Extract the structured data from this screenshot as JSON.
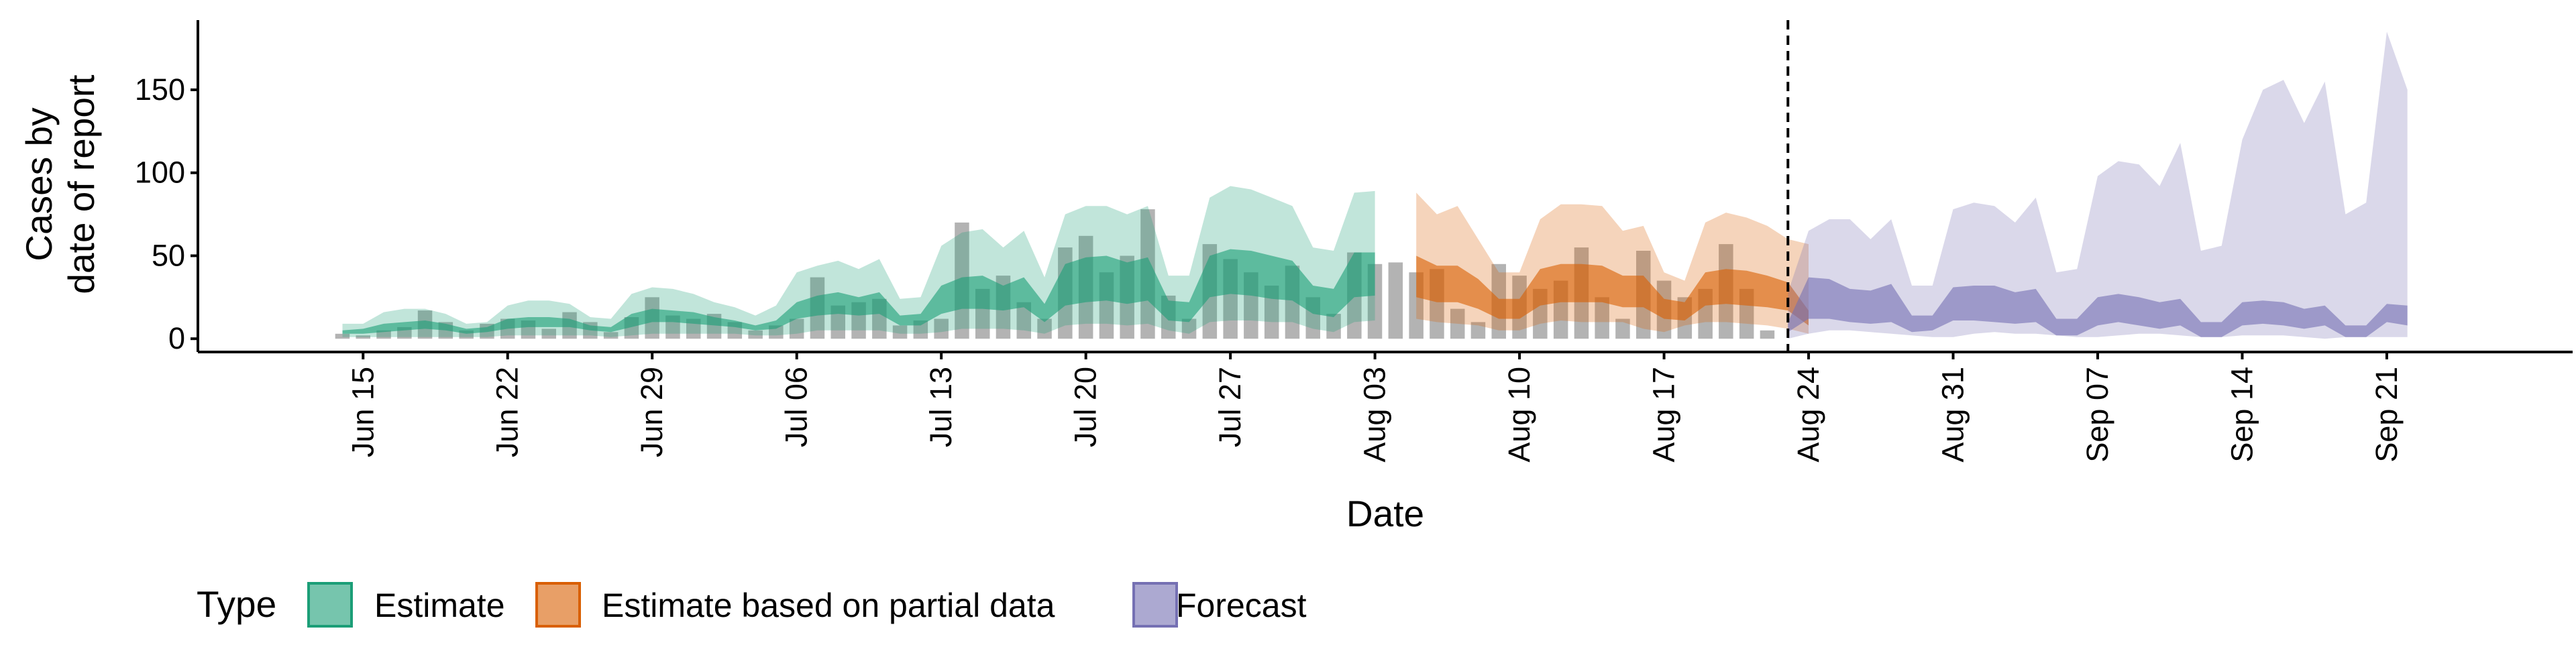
{
  "chart_data": {
    "type": "area",
    "title": "",
    "xlabel": "Date",
    "ylabel_lines": [
      "Cases by",
      "date of report"
    ],
    "y_ticks": [
      0,
      50,
      100,
      150
    ],
    "ylim": [
      -8,
      192
    ],
    "xlim": [
      "2020-06-07",
      "2020-09-30"
    ],
    "x_tick_labels": [
      "Jun 15",
      "Jun 22",
      "Jun 29",
      "Jul 06",
      "Jul 13",
      "Jul 20",
      "Jul 27",
      "Aug 03",
      "Aug 10",
      "Aug 17",
      "Aug 24",
      "Aug 31",
      "Sep 07",
      "Sep 14",
      "Sep 21"
    ],
    "x_tick_dates": [
      "2020-06-15",
      "2020-06-22",
      "2020-06-29",
      "2020-07-06",
      "2020-07-13",
      "2020-07-20",
      "2020-07-27",
      "2020-08-03",
      "2020-08-10",
      "2020-08-17",
      "2020-08-24",
      "2020-08-31",
      "2020-09-07",
      "2020-09-14",
      "2020-09-21"
    ],
    "forecast_date": "2020-08-23",
    "legend": {
      "title": "Type",
      "position": "bottom",
      "items": [
        {
          "label": "Estimate",
          "color": "#1B9E77"
        },
        {
          "label": "Estimate based on partial data",
          "color": "#D95F02"
        },
        {
          "label": "Forecast",
          "color": "#7570B3"
        }
      ]
    },
    "observed_cases": {
      "start": "2020-06-14",
      "values": [
        3,
        2,
        5,
        7,
        17,
        10,
        5,
        9,
        12,
        11,
        6,
        16,
        10,
        4,
        13,
        25,
        14,
        12,
        15,
        10,
        5,
        8,
        12,
        37,
        20,
        22,
        24,
        8,
        11,
        12,
        70,
        30,
        38,
        22,
        12,
        55,
        62,
        40,
        50,
        78,
        26,
        12,
        57,
        48,
        40,
        32,
        44,
        25,
        15,
        52,
        45,
        46,
        40,
        42,
        18,
        10,
        45,
        38,
        30,
        35,
        55,
        25,
        12,
        53,
        35,
        25,
        30,
        57,
        30,
        5
      ]
    },
    "series": [
      {
        "name": "Estimate",
        "color": "#1B9E77",
        "start": "2020-06-14",
        "outer_lower": [
          1,
          1,
          1,
          1,
          1,
          1,
          1,
          1,
          2,
          2,
          2,
          2,
          2,
          1,
          2,
          3,
          3,
          3,
          3,
          3,
          2,
          2,
          3,
          5,
          5,
          5,
          5,
          3,
          3,
          4,
          6,
          6,
          6,
          5,
          3,
          8,
          9,
          9,
          8,
          9,
          5,
          3,
          10,
          11,
          11,
          10,
          10,
          6,
          4,
          10,
          11
        ],
        "outer_upper": [
          9,
          9,
          16,
          18,
          18,
          15,
          9,
          10,
          20,
          23,
          23,
          21,
          13,
          12,
          27,
          31,
          30,
          27,
          22,
          19,
          14,
          20,
          40,
          44,
          47,
          42,
          48,
          24,
          25,
          56,
          64,
          66,
          55,
          65,
          37,
          75,
          80,
          80,
          75,
          80,
          38,
          38,
          85,
          92,
          90,
          85,
          80,
          55,
          53,
          88,
          89
        ],
        "inner_lower": [
          3,
          3,
          4,
          5,
          6,
          5,
          3,
          4,
          6,
          7,
          7,
          7,
          5,
          4,
          7,
          10,
          10,
          9,
          8,
          7,
          5,
          6,
          12,
          14,
          15,
          14,
          15,
          8,
          8,
          15,
          18,
          18,
          17,
          19,
          10,
          20,
          22,
          23,
          21,
          23,
          11,
          10,
          25,
          27,
          26,
          24,
          23,
          15,
          13,
          25,
          26
        ],
        "inner_upper": [
          5,
          6,
          9,
          10,
          11,
          9,
          6,
          7,
          12,
          13,
          13,
          12,
          8,
          7,
          15,
          18,
          17,
          16,
          13,
          11,
          8,
          11,
          22,
          26,
          28,
          25,
          28,
          14,
          15,
          32,
          37,
          38,
          32,
          37,
          21,
          45,
          49,
          50,
          46,
          49,
          23,
          22,
          50,
          54,
          53,
          50,
          47,
          32,
          30,
          52,
          52
        ]
      },
      {
        "name": "Estimate based on partial data",
        "color": "#D95F02",
        "start": "2020-08-05",
        "outer_lower": [
          12,
          10,
          9,
          8,
          5,
          5,
          9,
          11,
          10,
          10,
          10,
          6,
          4,
          8,
          10,
          10,
          9,
          8,
          6,
          3
        ],
        "outer_upper": [
          88,
          75,
          80,
          60,
          40,
          40,
          72,
          81,
          81,
          80,
          65,
          68,
          40,
          35,
          70,
          76,
          73,
          68,
          60,
          57
        ],
        "inner_lower": [
          25,
          22,
          22,
          18,
          12,
          12,
          20,
          22,
          22,
          22,
          19,
          19,
          12,
          11,
          20,
          21,
          20,
          19,
          17,
          8
        ],
        "inner_upper": [
          50,
          44,
          44,
          36,
          24,
          24,
          42,
          45,
          45,
          44,
          38,
          38,
          24,
          22,
          40,
          42,
          41,
          38,
          34,
          17
        ]
      },
      {
        "name": "Forecast",
        "color": "#7570B3",
        "start": "2020-08-23",
        "outer_lower": [
          0,
          3,
          5,
          5,
          4,
          3,
          2,
          1,
          1,
          3,
          4,
          3,
          3,
          2,
          1,
          1,
          2,
          3,
          3,
          2,
          1,
          1,
          2,
          2,
          2,
          1,
          0,
          1,
          1,
          1,
          1
        ],
        "outer_upper": [
          28,
          65,
          72,
          72,
          60,
          72,
          32,
          32,
          78,
          82,
          80,
          70,
          85,
          40,
          42,
          98,
          107,
          105,
          92,
          118,
          53,
          56,
          120,
          150,
          156,
          130,
          155,
          75,
          82,
          185,
          150
        ],
        "inner_lower": [
          4,
          12,
          12,
          10,
          9,
          10,
          4,
          5,
          11,
          11,
          10,
          9,
          10,
          2,
          2,
          8,
          10,
          8,
          6,
          8,
          1,
          1,
          8,
          9,
          8,
          6,
          8,
          1,
          1,
          10,
          8
        ],
        "inner_upper": [
          10,
          37,
          36,
          30,
          29,
          33,
          14,
          14,
          31,
          32,
          32,
          28,
          30,
          12,
          12,
          25,
          27,
          25,
          22,
          24,
          10,
          10,
          22,
          23,
          22,
          18,
          20,
          8,
          8,
          21,
          20
        ]
      }
    ]
  }
}
